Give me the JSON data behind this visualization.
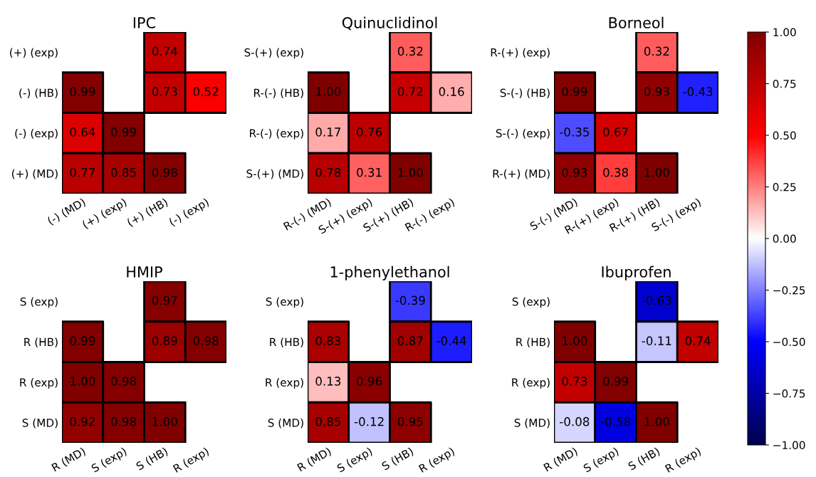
{
  "chart_data": [
    {
      "type": "heatmap",
      "title": "IPC",
      "categories": [
        "(-) (MD)",
        "(+) (exp)",
        "(+) (HB)",
        "(-) (exp)"
      ],
      "y_categories": [
        "(+) (exp)",
        "(-) (HB)",
        "(-) (exp)",
        "(+) (MD)"
      ],
      "cells": [
        [
          null,
          null,
          0.74,
          null
        ],
        [
          0.99,
          null,
          0.73,
          0.52
        ],
        [
          0.64,
          0.99,
          null,
          null
        ],
        [
          0.77,
          0.85,
          0.98,
          null
        ]
      ],
      "cell_labels": [
        [
          null,
          null,
          "0.74",
          null
        ],
        [
          "0.99",
          null,
          "0.73",
          "0.52"
        ],
        [
          "0.64",
          "0.99",
          null,
          null
        ],
        [
          "0.77",
          "0.85",
          "0.98",
          null
        ]
      ]
    },
    {
      "type": "heatmap",
      "title": "Quinuclidinol",
      "categories": [
        "R-(-) (MD)",
        "S-(+) (exp)",
        "S-(+) (HB)",
        "R-(-) (exp)"
      ],
      "y_categories": [
        "S-(+) (exp)",
        "R-(-) (HB)",
        "R-(-) (exp)",
        "S-(+) (MD)"
      ],
      "cells": [
        [
          null,
          null,
          0.32,
          null
        ],
        [
          1.0,
          null,
          0.72,
          0.16
        ],
        [
          0.17,
          0.76,
          null,
          null
        ],
        [
          0.78,
          0.31,
          1.0,
          null
        ]
      ],
      "cell_labels": [
        [
          null,
          null,
          "0.32",
          null
        ],
        [
          "1.00",
          null,
          "0.72",
          "0.16"
        ],
        [
          "0.17",
          "0.76",
          null,
          null
        ],
        [
          "0.78",
          "0.31",
          "1.00",
          null
        ]
      ]
    },
    {
      "type": "heatmap",
      "title": "Borneol",
      "categories": [
        "S-(-) (MD)",
        "R-(+) (exp)",
        "R-(+) (HB)",
        "S-(-) (exp)"
      ],
      "y_categories": [
        "R-(+) (exp)",
        "S-(-) (HB)",
        "S-(-) (exp)",
        "R-(+) (MD)"
      ],
      "cells": [
        [
          null,
          null,
          0.32,
          null
        ],
        [
          0.99,
          null,
          0.93,
          -0.43
        ],
        [
          -0.35,
          0.67,
          null,
          null
        ],
        [
          0.93,
          0.38,
          1.0,
          null
        ]
      ],
      "cell_labels": [
        [
          null,
          null,
          "0.32",
          null
        ],
        [
          "0.99",
          null,
          "0.93",
          "-0.43"
        ],
        [
          "-0.35",
          "0.67",
          null,
          null
        ],
        [
          "0.93",
          "0.38",
          "1.00",
          null
        ]
      ]
    },
    {
      "type": "heatmap",
      "title": "HMIP",
      "categories": [
        "R (MD)",
        "S (exp)",
        "S (HB)",
        "R (exp)"
      ],
      "y_categories": [
        "S (exp)",
        "R (HB)",
        "R (exp)",
        "S (MD)"
      ],
      "cells": [
        [
          null,
          null,
          0.97,
          null
        ],
        [
          0.99,
          null,
          0.89,
          0.98
        ],
        [
          1.0,
          0.98,
          null,
          null
        ],
        [
          0.92,
          0.98,
          1.0,
          null
        ]
      ],
      "cell_labels": [
        [
          null,
          null,
          "0.97",
          null
        ],
        [
          "0.99",
          null,
          "0.89",
          "0.98"
        ],
        [
          "1.00",
          "0.98",
          null,
          null
        ],
        [
          "0.92",
          "0.98",
          "1.00",
          null
        ]
      ]
    },
    {
      "type": "heatmap",
      "title": "1-phenylethanol",
      "categories": [
        "R (MD)",
        "S (exp)",
        "S (HB)",
        "R (exp)"
      ],
      "y_categories": [
        "S (exp)",
        "R (HB)",
        "R (exp)",
        "S (MD)"
      ],
      "cells": [
        [
          null,
          null,
          -0.39,
          null
        ],
        [
          0.83,
          null,
          0.87,
          -0.44
        ],
        [
          0.13,
          0.96,
          null,
          null
        ],
        [
          0.85,
          -0.12,
          0.95,
          null
        ]
      ],
      "cell_labels": [
        [
          null,
          null,
          "-0.39",
          null
        ],
        [
          "0.83",
          null,
          "0.87",
          "-0.44"
        ],
        [
          "0.13",
          "0.96",
          null,
          null
        ],
        [
          "0.85",
          "-0.12",
          "0.95",
          null
        ]
      ]
    },
    {
      "type": "heatmap",
      "title": "Ibuprofen",
      "categories": [
        "R (MD)",
        "S (exp)",
        "S (HB)",
        "R (exp)"
      ],
      "y_categories": [
        "S (exp)",
        "R (HB)",
        "R (exp)",
        "S (MD)"
      ],
      "cells": [
        [
          null,
          null,
          -0.63,
          null
        ],
        [
          1.0,
          null,
          -0.11,
          0.74
        ],
        [
          0.73,
          0.99,
          null,
          null
        ],
        [
          -0.08,
          -0.58,
          1.0,
          null
        ]
      ],
      "cell_labels": [
        [
          null,
          null,
          "-0.63",
          null
        ],
        [
          "1.00",
          null,
          "-0.11",
          "0.74"
        ],
        [
          "0.73",
          "0.99",
          null,
          null
        ],
        [
          "-0.08",
          "-0.58",
          "1.00",
          null
        ]
      ],
      "clim": [
        -1,
        1
      ],
      "cticks": [
        {
          "value": -1,
          "label": "−1.00"
        },
        {
          "value": -0.75,
          "label": "−0.75"
        },
        {
          "value": -0.5,
          "label": "−0.50"
        },
        {
          "value": -0.25,
          "label": "−0.25"
        },
        {
          "value": 0,
          "label": "0.00"
        },
        {
          "value": 0.25,
          "label": "0.25"
        },
        {
          "value": 0.5,
          "label": "0.50"
        },
        {
          "value": 0.75,
          "label": "0.75"
        },
        {
          "value": 1,
          "label": "1.00"
        }
      ]
    }
  ]
}
